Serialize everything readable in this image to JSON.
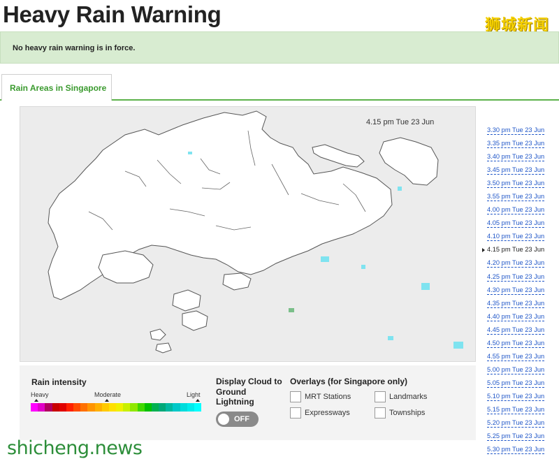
{
  "header": {
    "title": "Heavy Rain Warning"
  },
  "watermarks": {
    "top_right": "狮城新闻",
    "bottom_left": "shicheng.news"
  },
  "warning": {
    "message": "No heavy rain warning is in force."
  },
  "tabs": [
    {
      "label": "Rain Areas in Singapore",
      "active": true
    }
  ],
  "map": {
    "timestamp": "4.15 pm Tue 23 Jun"
  },
  "legend": {
    "rain_intensity": {
      "title": "Rain intensity",
      "heavy_label": "Heavy",
      "moderate_label": "Moderate",
      "light_label": "Light",
      "colors": [
        "#ff00ff",
        "#e000c8",
        "#b00060",
        "#c80000",
        "#e00000",
        "#ff2000",
        "#ff4a00",
        "#ff7000",
        "#ff9400",
        "#ffb000",
        "#ffca00",
        "#ffe000",
        "#f0f000",
        "#c8f000",
        "#90e800",
        "#40d800",
        "#00c000",
        "#00b050",
        "#00a878",
        "#00b8a0",
        "#00c8c8",
        "#00dcdc",
        "#00ecec",
        "#00ffff"
      ]
    },
    "lightning": {
      "title": "Display Cloud to Ground Lightning",
      "toggle_state": "OFF"
    },
    "overlays": {
      "title": "Overlays (for Singapore only)",
      "items": [
        {
          "label": "MRT Stations",
          "checked": false
        },
        {
          "label": "Landmarks",
          "checked": false
        },
        {
          "label": "Expressways",
          "checked": false
        },
        {
          "label": "Townships",
          "checked": false
        }
      ]
    }
  },
  "timeline": {
    "current_index": 9,
    "items": [
      "3.30 pm Tue 23 Jun",
      "3.35 pm Tue 23 Jun",
      "3.40 pm Tue 23 Jun",
      "3.45 pm Tue 23 Jun",
      "3.50 pm Tue 23 Jun",
      "3.55 pm Tue 23 Jun",
      "4.00 pm Tue 23 Jun",
      "4.05 pm Tue 23 Jun",
      "4.10 pm Tue 23 Jun",
      "4.15 pm Tue 23 Jun",
      "4.20 pm Tue 23 Jun",
      "4.25 pm Tue 23 Jun",
      "4.30 pm Tue 23 Jun",
      "4.35 pm Tue 23 Jun",
      "4.40 pm Tue 23 Jun",
      "4.45 pm Tue 23 Jun",
      "4.50 pm Tue 23 Jun",
      "4.55 pm Tue 23 Jun",
      "5.00 pm Tue 23 Jun",
      "5.05 pm Tue 23 Jun",
      "5.10 pm Tue 23 Jun",
      "5.15 pm Tue 23 Jun",
      "5.20 pm Tue 23 Jun",
      "5.25 pm Tue 23 Jun",
      "5.30 pm Tue 23 Jun"
    ]
  }
}
